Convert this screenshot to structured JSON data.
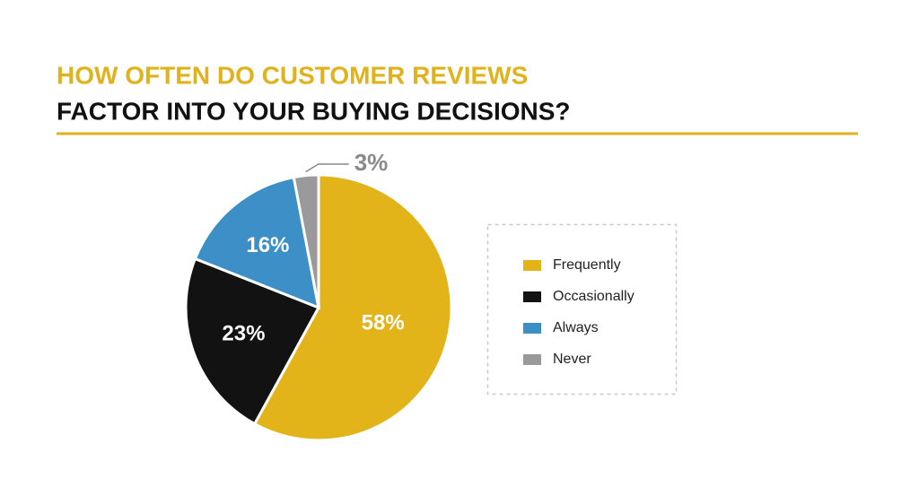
{
  "chart_data": {
    "type": "pie",
    "title_lines": [
      "HOW OFTEN DO CUSTOMER REVIEWS",
      "FACTOR INTO YOUR BUYING DECISIONS?"
    ],
    "title_colors": [
      "#e0b31c",
      "#111111"
    ],
    "categories": [
      "Frequently",
      "Occasionally",
      "Always",
      "Never"
    ],
    "values": [
      58,
      23,
      16,
      3
    ],
    "value_labels": [
      "58%",
      "23%",
      "16%",
      "3%"
    ],
    "colors": [
      "#e2b41a",
      "#121212",
      "#3d8fc7",
      "#9a9a9a"
    ],
    "legend": "right"
  }
}
